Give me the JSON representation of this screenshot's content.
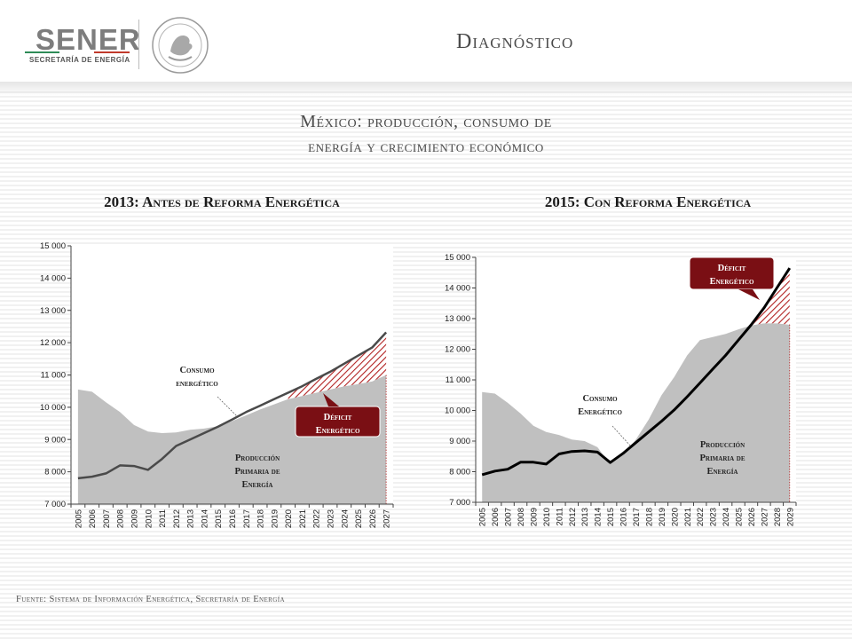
{
  "header": {
    "logo_text": "SENER",
    "logo_subtitle": "SECRETARÍA DE ENERGÍA",
    "title": "Diagnóstico"
  },
  "subtitle": {
    "line1": "México: producción, consumo de",
    "line2": "energía y crecimiento económico"
  },
  "source": "Fuente: Sistema de Información Energética, Secretaría de Energía",
  "colors": {
    "production_area": "#c0c0c0",
    "consumption_line": "#4a4a4a",
    "consumption_line_2015": "#000000",
    "deficit_hatch": "#b22222",
    "callout_fill": "#7a0f14"
  },
  "chart_data": [
    {
      "type": "area",
      "title": "2013: Antes de Reforma Energética",
      "x": [
        "2005",
        "2006",
        "2007",
        "2008",
        "2009",
        "2010",
        "2011",
        "2012",
        "2013",
        "2014",
        "2015",
        "2016",
        "2017",
        "2018",
        "2019",
        "2020",
        "2021",
        "2022",
        "2023",
        "2024",
        "2025",
        "2026",
        "2027"
      ],
      "ylim": [
        7000,
        15000
      ],
      "yticks": [
        "7 000",
        "8 000",
        "9 000",
        "10 000",
        "11 000",
        "12 000",
        "13 000",
        "14 000",
        "15 000"
      ],
      "series": [
        {
          "kind": "area",
          "values": [
            10550,
            10480,
            10150,
            9850,
            9450,
            9250,
            9200,
            9220,
            9300,
            9340,
            9410,
            9570,
            9750,
            9930,
            10090,
            10250,
            10350,
            10450,
            10550,
            10650,
            10720,
            10800,
            11000
          ]
        },
        {
          "kind": "line",
          "values": [
            7800,
            7850,
            7950,
            8200,
            8180,
            8060,
            8400,
            8800,
            9000,
            9200,
            9400,
            9620,
            9850,
            10050,
            10250,
            10450,
            10650,
            10880,
            11100,
            11350,
            11600,
            11850,
            12320
          ]
        }
      ],
      "annotations": {
        "consumption": [
          "Consumo",
          "energético"
        ],
        "production": [
          "Producción",
          "Primaria de",
          "Energía"
        ],
        "deficit": [
          "Déficit",
          "Energético"
        ]
      }
    },
    {
      "type": "area",
      "title": "2015: Con Reforma Energética",
      "x": [
        "2005",
        "2006",
        "2007",
        "2008",
        "2009",
        "2010",
        "2011",
        "2012",
        "2013",
        "2014",
        "2015",
        "2016",
        "2017",
        "2018",
        "2019",
        "2020",
        "2021",
        "2022",
        "2023",
        "2024",
        "2025",
        "2026",
        "2027",
        "2028",
        "2029"
      ],
      "ylim": [
        7000,
        15000
      ],
      "yticks": [
        "7 000",
        "8 000",
        "9 000",
        "10 000",
        "11 000",
        "12 000",
        "13 000",
        "14 000",
        "15 000"
      ],
      "series": [
        {
          "kind": "area",
          "values": [
            10600,
            10550,
            10250,
            9900,
            9500,
            9300,
            9200,
            9050,
            9000,
            8800,
            8250,
            8550,
            9050,
            9700,
            10500,
            11100,
            11800,
            12300,
            12400,
            12500,
            12650,
            12780,
            12850,
            12850,
            12800
          ]
        },
        {
          "kind": "line",
          "values": [
            7900,
            8020,
            8080,
            8310,
            8310,
            8250,
            8580,
            8660,
            8680,
            8640,
            8300,
            8600,
            8950,
            9300,
            9650,
            10020,
            10450,
            10900,
            11350,
            11800,
            12300,
            12800,
            13350,
            14000,
            14650
          ]
        }
      ],
      "annotations": {
        "consumption": [
          "Consumo",
          "Energético"
        ],
        "production": [
          "Producción",
          "Primaria de",
          "Energía"
        ],
        "deficit": [
          "Déficit",
          "Energético"
        ]
      }
    }
  ]
}
